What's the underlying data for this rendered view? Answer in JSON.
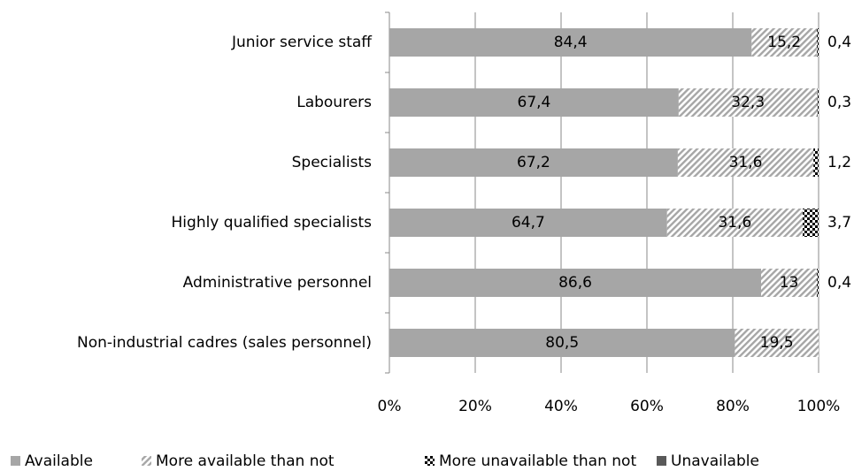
{
  "chart_data": {
    "type": "stacked-bar-horizontal",
    "categories": [
      "Junior service staff",
      "Labourers",
      "Specialists",
      "Highly qualified specialists",
      "Administrative personnel",
      "Non-industrial cadres (sales personnel)"
    ],
    "series": [
      {
        "name": "Available",
        "color": "#a6a6a6",
        "pattern": "solid",
        "values": [
          84.4,
          67.4,
          67.2,
          64.7,
          86.6,
          80.5
        ],
        "value_labels": [
          "84,4",
          "67,4",
          "67,2",
          "64,7",
          "86,6",
          "80,5"
        ]
      },
      {
        "name": "More available than not",
        "color": "#a6a6a6",
        "pattern": "hatch",
        "values": [
          15.2,
          32.3,
          31.6,
          31.6,
          13,
          19.5
        ],
        "value_labels": [
          "15,2",
          "32,3",
          "31,6",
          "31,6",
          "13",
          "19,5"
        ]
      },
      {
        "name": "More unavailable than not",
        "color": "#000000",
        "pattern": "check",
        "values": [
          0.4,
          0.3,
          1.2,
          3.7,
          0.4,
          null
        ],
        "value_labels": [
          "0,4",
          "0,3",
          "1,2",
          "3,7",
          "0,4",
          null
        ]
      },
      {
        "name": "Unavailable",
        "color": "#595959",
        "pattern": "solid",
        "values": [
          null,
          null,
          null,
          null,
          null,
          null
        ]
      }
    ],
    "xlim": [
      0,
      100
    ],
    "xticks": [
      {
        "value": 0,
        "label": "0%"
      },
      {
        "value": 20,
        "label": "20%"
      },
      {
        "value": 40,
        "label": "40%"
      },
      {
        "value": 60,
        "label": "60%"
      },
      {
        "value": 80,
        "label": "80%"
      },
      {
        "value": 100,
        "label": "100%"
      }
    ],
    "grid": true,
    "legend": "bottom"
  }
}
